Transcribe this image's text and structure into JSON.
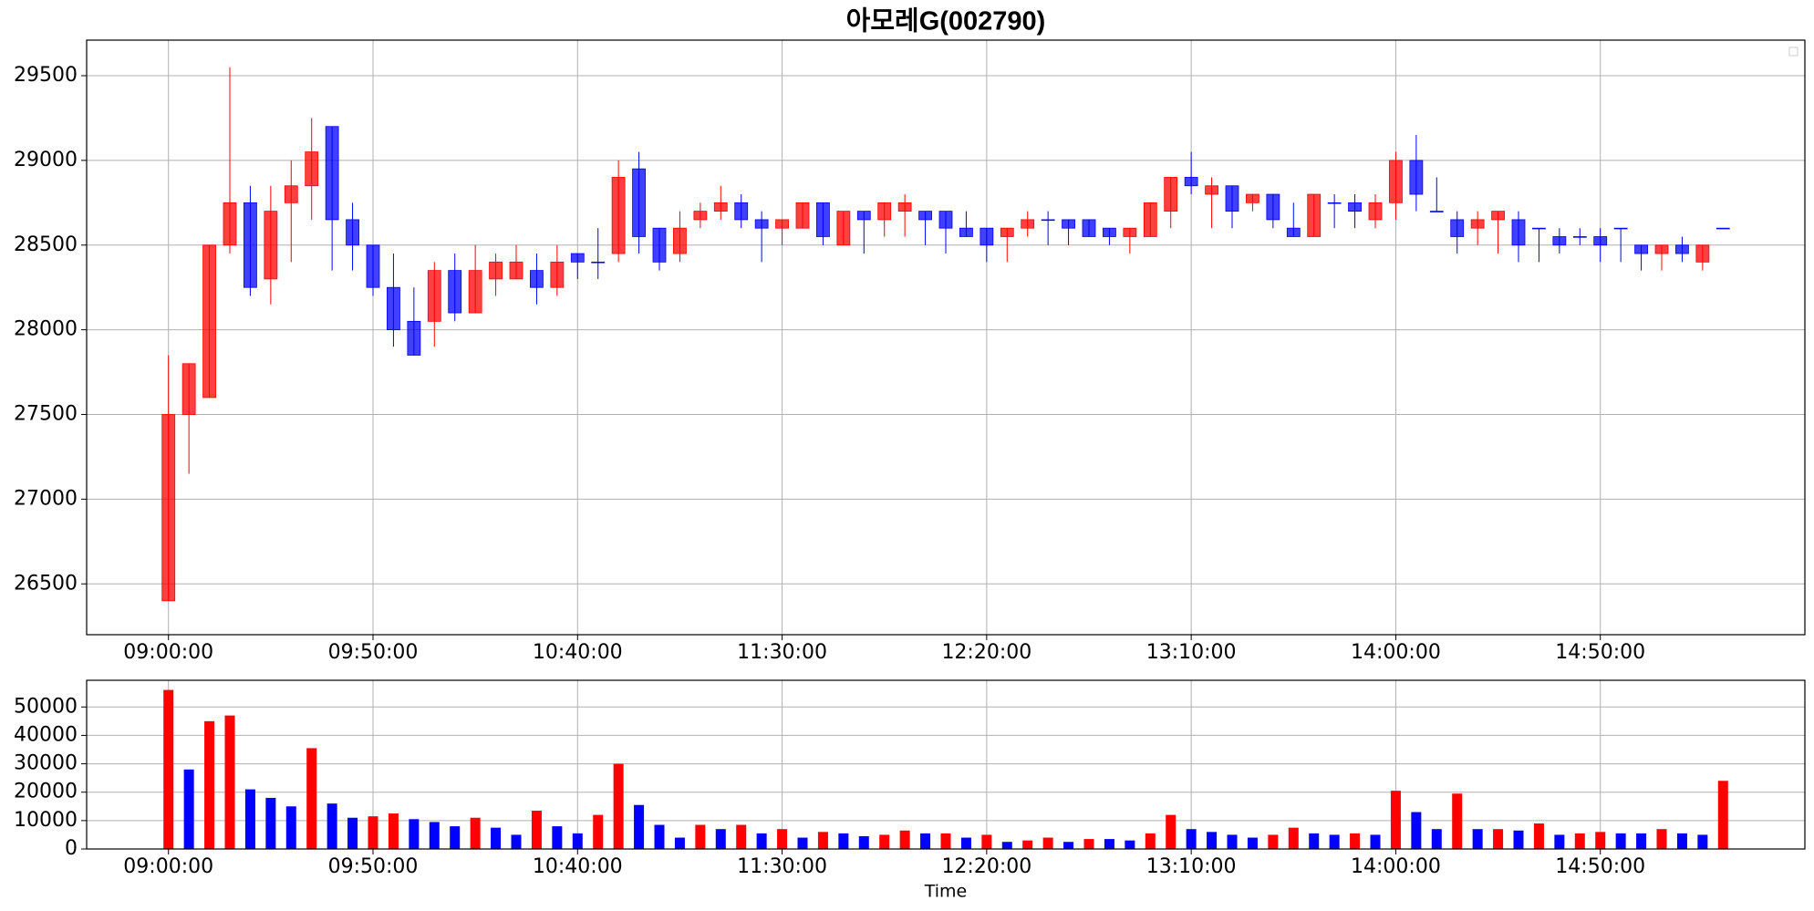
{
  "chart_data": [
    {
      "type": "candlestick",
      "title": "아모레G(002790)",
      "categories": [
        "09:00:00",
        null,
        null,
        null,
        null,
        null,
        null,
        null,
        null,
        null,
        "09:50:00",
        null,
        null,
        null,
        null,
        null,
        null,
        null,
        null,
        null,
        "10:40:00",
        null,
        null,
        null,
        null,
        null,
        null,
        null,
        null,
        null,
        "11:30:00",
        null,
        null,
        null,
        null,
        null,
        null,
        null,
        null,
        null,
        "12:20:00",
        null,
        null,
        null,
        null,
        null,
        null,
        null,
        null,
        null,
        "13:10:00",
        null,
        null,
        null,
        null,
        null,
        null,
        null,
        null,
        null,
        "14:00:00",
        null,
        null,
        null,
        null,
        null,
        null,
        null,
        null,
        null,
        "14:50:00",
        null,
        null,
        null,
        null,
        null,
        null
      ],
      "open": [
        26400,
        27500,
        27600,
        28500,
        28750,
        28300,
        28750,
        28850,
        29200,
        28650,
        28500,
        28250,
        28050,
        28050,
        28350,
        28100,
        28300,
        28300,
        28350,
        28250,
        28450,
        28400,
        28450,
        28950,
        28600,
        28450,
        28650,
        28700,
        28750,
        28650,
        28600,
        28600,
        28750,
        28500,
        28700,
        28650,
        28700,
        28700,
        28700,
        28600,
        28600,
        28550,
        28600,
        28650,
        28650,
        28650,
        28600,
        28550,
        28550,
        28700,
        28900,
        28800,
        28850,
        28750,
        28800,
        28600,
        28550,
        28750,
        28750,
        28650,
        28750,
        29000,
        28700,
        28650,
        28600,
        28650,
        28650,
        28600,
        28550,
        28550,
        28550,
        28600,
        28500,
        28450,
        28500,
        28400,
        28600
      ],
      "high": [
        27850,
        27800,
        28500,
        29550,
        28850,
        28850,
        29000,
        29250,
        29200,
        28750,
        28500,
        28450,
        28250,
        28400,
        28450,
        28500,
        28450,
        28500,
        28450,
        28500,
        28450,
        28600,
        29000,
        29050,
        28600,
        28700,
        28750,
        28850,
        28800,
        28700,
        28650,
        28750,
        28750,
        28700,
        28700,
        28750,
        28800,
        28700,
        28700,
        28700,
        28600,
        28600,
        28700,
        28700,
        28650,
        28650,
        28600,
        28600,
        28750,
        28900,
        29050,
        28900,
        28850,
        28800,
        28800,
        28750,
        28800,
        28800,
        28800,
        28800,
        29050,
        29150,
        28900,
        28700,
        28700,
        28700,
        28700,
        28600,
        28600,
        28600,
        28600,
        28600,
        28500,
        28500,
        28550,
        28500,
        28600
      ],
      "low": [
        26400,
        27150,
        27600,
        28450,
        28200,
        28150,
        28400,
        28650,
        28350,
        28350,
        28200,
        27900,
        27850,
        27900,
        28050,
        28100,
        28200,
        28300,
        28150,
        28200,
        28300,
        28300,
        28400,
        28450,
        28350,
        28400,
        28600,
        28650,
        28600,
        28400,
        28500,
        28600,
        28500,
        28500,
        28450,
        28550,
        28550,
        28500,
        28450,
        28550,
        28400,
        28400,
        28550,
        28500,
        28500,
        28550,
        28500,
        28450,
        28550,
        28600,
        28800,
        28600,
        28600,
        28700,
        28600,
        28550,
        28550,
        28600,
        28600,
        28600,
        28650,
        28700,
        28700,
        28450,
        28500,
        28450,
        28400,
        28400,
        28450,
        28500,
        28400,
        28400,
        28350,
        28350,
        28400,
        28350,
        28600
      ],
      "close": [
        27500,
        27800,
        28500,
        28750,
        28250,
        28700,
        28850,
        29050,
        28650,
        28500,
        28250,
        28000,
        27850,
        28350,
        28100,
        28350,
        28400,
        28400,
        28250,
        28400,
        28400,
        28400,
        28900,
        28550,
        28400,
        28600,
        28700,
        28750,
        28650,
        28600,
        28650,
        28750,
        28550,
        28700,
        28650,
        28750,
        28750,
        28650,
        28600,
        28550,
        28500,
        28600,
        28650,
        28650,
        28600,
        28550,
        28550,
        28600,
        28750,
        28900,
        28850,
        28850,
        28700,
        28800,
        28650,
        28550,
        28800,
        28750,
        28700,
        28750,
        29000,
        28800,
        28700,
        28550,
        28650,
        28700,
        28500,
        28600,
        28500,
        28550,
        28500,
        28600,
        28450,
        28500,
        28450,
        28500,
        28600
      ],
      "up_color": "#ff0000",
      "down_color": "#0000ff",
      "xlim": [
        -4,
        80
      ],
      "ylim": [
        26200,
        29710
      ],
      "yticks": [
        26500,
        27000,
        27500,
        28000,
        28500,
        29000,
        29500
      ],
      "grid": true
    },
    {
      "type": "bar",
      "xlabel": "Time",
      "categories": [
        "09:00:00",
        null,
        null,
        null,
        null,
        null,
        null,
        null,
        null,
        null,
        "09:50:00",
        null,
        null,
        null,
        null,
        null,
        null,
        null,
        null,
        null,
        "10:40:00",
        null,
        null,
        null,
        null,
        null,
        null,
        null,
        null,
        null,
        "11:30:00",
        null,
        null,
        null,
        null,
        null,
        null,
        null,
        null,
        null,
        "12:20:00",
        null,
        null,
        null,
        null,
        null,
        null,
        null,
        null,
        null,
        "13:10:00",
        null,
        null,
        null,
        null,
        null,
        null,
        null,
        null,
        null,
        "14:00:00",
        null,
        null,
        null,
        null,
        null,
        null,
        null,
        null,
        null,
        "14:50:00",
        null,
        null,
        null,
        null,
        null,
        null
      ],
      "values": [
        56000,
        28000,
        45000,
        47000,
        21000,
        18000,
        15000,
        35500,
        16000,
        11000,
        11500,
        12500,
        10500,
        9500,
        8000,
        11000,
        7500,
        5000,
        13500,
        8000,
        5500,
        12000,
        30000,
        15500,
        8500,
        4000,
        8500,
        7000,
        8500,
        5500,
        7000,
        4000,
        6000,
        5500,
        4500,
        5000,
        6500,
        5500,
        5500,
        4000,
        5000,
        2500,
        3000,
        4000,
        2500,
        3500,
        3500,
        3000,
        5500,
        12000,
        7000,
        6000,
        5000,
        4000,
        5000,
        7500,
        5500,
        5000,
        5500,
        5000,
        20500,
        13000,
        7000,
        19500,
        7000,
        7000,
        6500,
        9000,
        5000,
        5500,
        6000,
        5500,
        5500,
        7000,
        5500,
        5000,
        24000
      ],
      "colors": [
        "#ff0000",
        "#0000ff",
        "#ff0000",
        "#ff0000",
        "#0000ff",
        "#0000ff",
        "#0000ff",
        "#ff0000",
        "#0000ff",
        "#0000ff",
        "#ff0000",
        "#ff0000",
        "#0000ff",
        "#0000ff",
        "#0000ff",
        "#ff0000",
        "#0000ff",
        "#0000ff",
        "#ff0000",
        "#0000ff",
        "#0000ff",
        "#ff0000",
        "#ff0000",
        "#0000ff",
        "#0000ff",
        "#0000ff",
        "#ff0000",
        "#0000ff",
        "#ff0000",
        "#0000ff",
        "#ff0000",
        "#0000ff",
        "#ff0000",
        "#0000ff",
        "#0000ff",
        "#ff0000",
        "#ff0000",
        "#0000ff",
        "#ff0000",
        "#0000ff",
        "#ff0000",
        "#0000ff",
        "#ff0000",
        "#ff0000",
        "#0000ff",
        "#ff0000",
        "#0000ff",
        "#0000ff",
        "#ff0000",
        "#ff0000",
        "#0000ff",
        "#0000ff",
        "#0000ff",
        "#0000ff",
        "#ff0000",
        "#ff0000",
        "#0000ff",
        "#0000ff",
        "#ff0000",
        "#0000ff",
        "#ff0000",
        "#0000ff",
        "#0000ff",
        "#ff0000",
        "#0000ff",
        "#ff0000",
        "#0000ff",
        "#ff0000",
        "#0000ff",
        "#ff0000",
        "#ff0000",
        "#0000ff",
        "#0000ff",
        "#ff0000",
        "#0000ff",
        "#0000ff",
        "#ff0000"
      ],
      "xlim": [
        -4,
        80
      ],
      "ylim": [
        0,
        59400
      ],
      "yticks": [
        0,
        10000,
        20000,
        30000,
        40000,
        50000
      ],
      "grid": true
    }
  ]
}
